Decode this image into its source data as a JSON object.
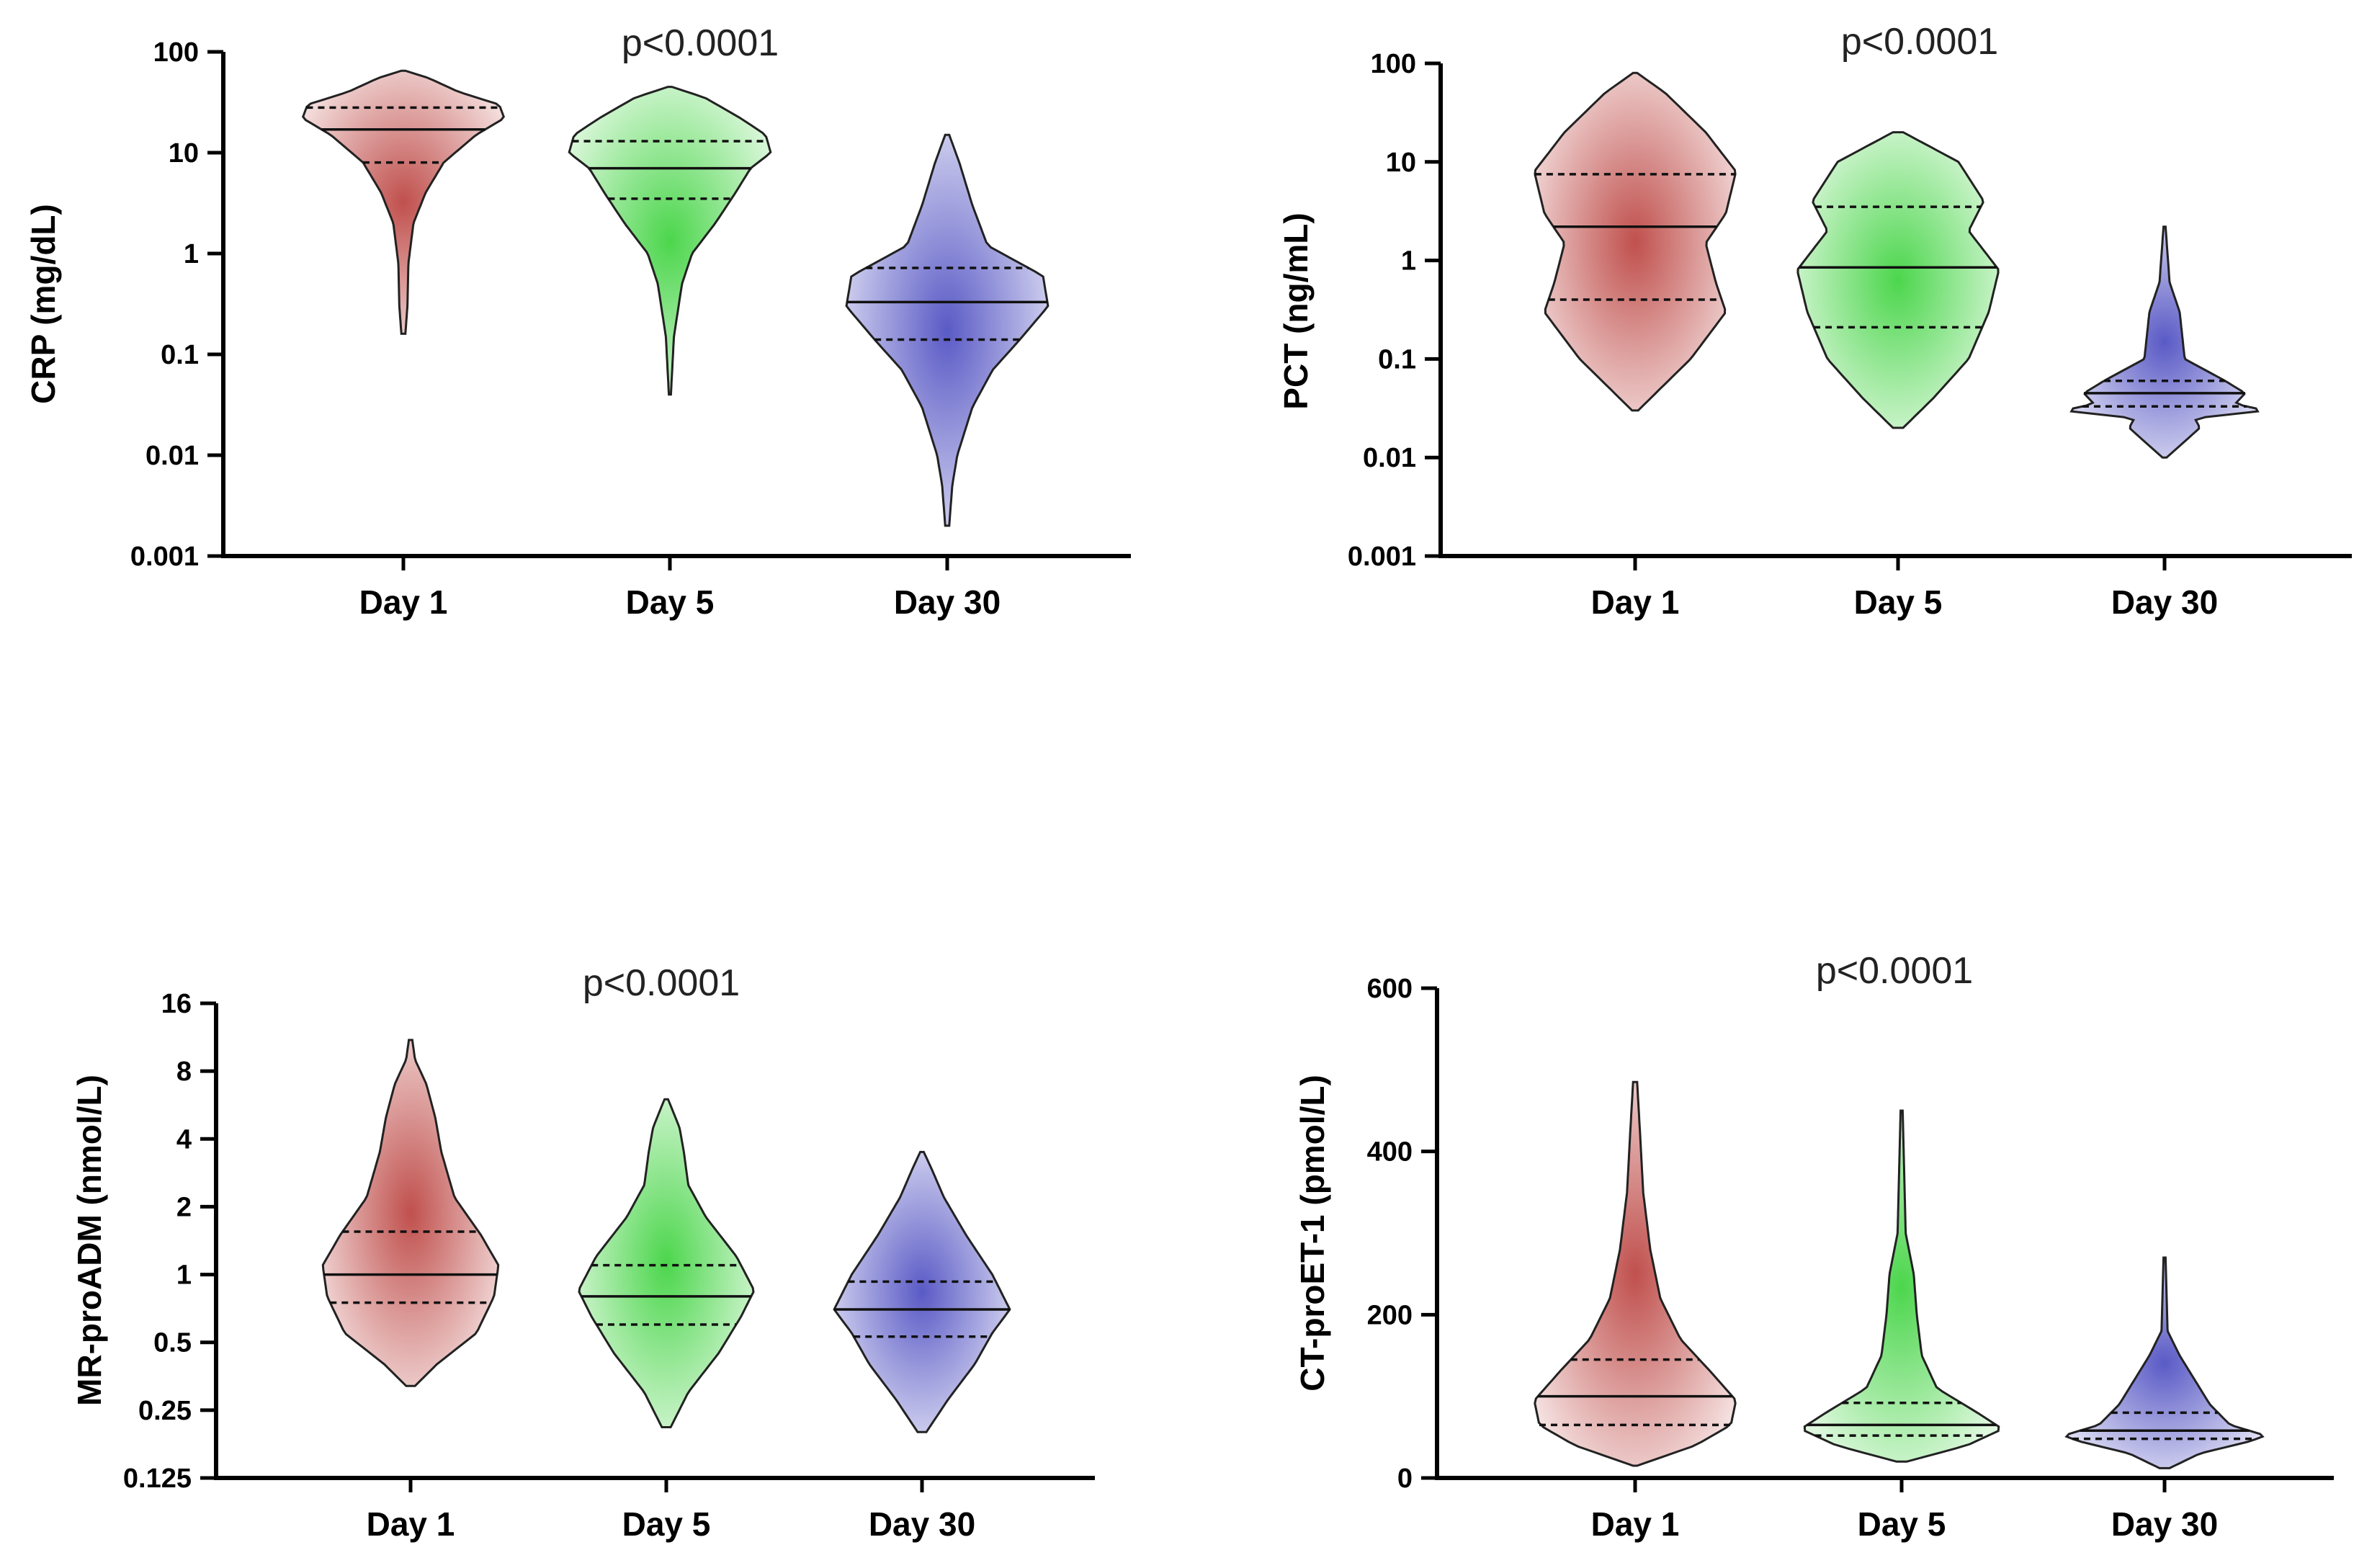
{
  "chart_data": [
    {
      "type": "violin",
      "scale": "log",
      "ylabel": "CRP (mg/dL)",
      "annotation": "p<0.0001",
      "yticks": [
        0.001,
        0.01,
        0.1,
        1,
        10,
        100
      ],
      "ytick_labels": [
        "0.001",
        "0.01",
        "0.1",
        "1",
        "10",
        "100"
      ],
      "ylim": [
        0.001,
        100
      ],
      "categories": [
        "Day 1",
        "Day 5",
        "Day 30"
      ],
      "series": [
        {
          "name": "Day 1",
          "color": "#c0504d",
          "min": 0.16,
          "max": 65,
          "q1": 8,
          "median": 17,
          "q3": 28,
          "profile": [
            [
              0.16,
              0.02
            ],
            [
              0.3,
              0.04
            ],
            [
              0.8,
              0.05
            ],
            [
              2,
              0.1
            ],
            [
              4,
              0.22
            ],
            [
              8,
              0.4
            ],
            [
              15,
              0.72
            ],
            [
              22,
              1.0
            ],
            [
              30,
              0.95
            ],
            [
              40,
              0.55
            ],
            [
              55,
              0.25
            ],
            [
              65,
              0.02
            ]
          ]
        },
        {
          "name": "Day 5",
          "color": "#4cd64c",
          "min": 0.04,
          "max": 45,
          "q1": 3.5,
          "median": 7,
          "q3": 13,
          "profile": [
            [
              0.04,
              0.01
            ],
            [
              0.15,
              0.04
            ],
            [
              0.5,
              0.12
            ],
            [
              1,
              0.22
            ],
            [
              2,
              0.45
            ],
            [
              4,
              0.65
            ],
            [
              7,
              0.8
            ],
            [
              10,
              1.0
            ],
            [
              15,
              0.95
            ],
            [
              22,
              0.7
            ],
            [
              35,
              0.35
            ],
            [
              45,
              0.02
            ]
          ]
        },
        {
          "name": "Day 30",
          "color": "#5a5ac6",
          "min": 0.002,
          "max": 15,
          "q1": 0.14,
          "median": 0.33,
          "q3": 0.72,
          "profile": [
            [
              0.002,
              0.02
            ],
            [
              0.005,
              0.05
            ],
            [
              0.01,
              0.1
            ],
            [
              0.03,
              0.25
            ],
            [
              0.07,
              0.45
            ],
            [
              0.14,
              0.72
            ],
            [
              0.3,
              1.0
            ],
            [
              0.6,
              0.95
            ],
            [
              1.2,
              0.4
            ],
            [
              3,
              0.25
            ],
            [
              8,
              0.12
            ],
            [
              15,
              0.02
            ]
          ]
        }
      ]
    },
    {
      "type": "violin",
      "scale": "log",
      "ylabel": "PCT (ng/mL)",
      "annotation": "p<0.0001",
      "yticks": [
        0.001,
        0.01,
        0.1,
        1,
        10,
        100
      ],
      "ytick_labels": [
        "0.001",
        "0.01",
        "0.1",
        "1",
        "10",
        "100"
      ],
      "ylim": [
        0.001,
        100
      ],
      "categories": [
        "Day 1",
        "Day 5",
        "Day 30"
      ],
      "series": [
        {
          "name": "Day 1",
          "color": "#c0504d",
          "min": 0.03,
          "max": 80,
          "q1": 0.4,
          "median": 2.2,
          "q3": 7.5,
          "profile": [
            [
              0.03,
              0.03
            ],
            [
              0.05,
              0.25
            ],
            [
              0.1,
              0.55
            ],
            [
              0.3,
              0.9
            ],
            [
              0.6,
              0.8
            ],
            [
              1.5,
              0.7
            ],
            [
              3,
              0.9
            ],
            [
              8,
              1.0
            ],
            [
              20,
              0.7
            ],
            [
              50,
              0.3
            ],
            [
              80,
              0.02
            ]
          ]
        },
        {
          "name": "Day 5",
          "color": "#4cd64c",
          "min": 0.02,
          "max": 20,
          "q1": 0.21,
          "median": 0.85,
          "q3": 3.5,
          "profile": [
            [
              0.02,
              0.05
            ],
            [
              0.04,
              0.35
            ],
            [
              0.1,
              0.7
            ],
            [
              0.3,
              0.9
            ],
            [
              0.8,
              1.0
            ],
            [
              2,
              0.7
            ],
            [
              4,
              0.85
            ],
            [
              10,
              0.6
            ],
            [
              20,
              0.05
            ]
          ]
        },
        {
          "name": "Day 30",
          "color": "#5a5ac6",
          "min": 0.01,
          "max": 2.2,
          "q1": 0.033,
          "median": 0.045,
          "q3": 0.06,
          "profile": [
            [
              0.01,
              0.02
            ],
            [
              0.02,
              0.35
            ],
            [
              0.025,
              0.3
            ],
            [
              0.03,
              1.0
            ],
            [
              0.035,
              0.7
            ],
            [
              0.045,
              0.8
            ],
            [
              0.06,
              0.6
            ],
            [
              0.1,
              0.2
            ],
            [
              0.3,
              0.15
            ],
            [
              0.6,
              0.05
            ],
            [
              2.2,
              0.01
            ]
          ]
        }
      ]
    },
    {
      "type": "violin",
      "scale": "log",
      "ylabel": "MR-proADM (nmol/L)",
      "annotation": "p<0.0001",
      "yticks": [
        0.125,
        0.25,
        0.5,
        1,
        2,
        4,
        8,
        16
      ],
      "ytick_labels": [
        "0.125",
        "0.25",
        "0.5",
        "1",
        "2",
        "4",
        "8",
        "16"
      ],
      "ylim": [
        0.125,
        16
      ],
      "categories": [
        "Day 1",
        "Day 5",
        "Day 30"
      ],
      "series": [
        {
          "name": "Day 1",
          "color": "#c0504d",
          "min": 0.32,
          "max": 11,
          "q1": 0.75,
          "median": 1.0,
          "q3": 1.55,
          "profile": [
            [
              0.32,
              0.05
            ],
            [
              0.4,
              0.3
            ],
            [
              0.55,
              0.75
            ],
            [
              0.8,
              0.95
            ],
            [
              1.1,
              1.0
            ],
            [
              1.5,
              0.8
            ],
            [
              2.2,
              0.5
            ],
            [
              3.5,
              0.35
            ],
            [
              5,
              0.28
            ],
            [
              7,
              0.18
            ],
            [
              9,
              0.05
            ],
            [
              11,
              0.02
            ]
          ]
        },
        {
          "name": "Day 5",
          "color": "#4cd64c",
          "min": 0.21,
          "max": 6,
          "q1": 0.6,
          "median": 0.8,
          "q3": 1.1,
          "profile": [
            [
              0.21,
              0.05
            ],
            [
              0.3,
              0.25
            ],
            [
              0.45,
              0.6
            ],
            [
              0.65,
              0.85
            ],
            [
              0.85,
              1.0
            ],
            [
              1.2,
              0.8
            ],
            [
              1.8,
              0.45
            ],
            [
              2.5,
              0.25
            ],
            [
              3.5,
              0.2
            ],
            [
              4.5,
              0.15
            ],
            [
              6,
              0.02
            ]
          ]
        },
        {
          "name": "Day 30",
          "color": "#5a5ac6",
          "min": 0.2,
          "max": 3.5,
          "q1": 0.53,
          "median": 0.7,
          "q3": 0.93,
          "profile": [
            [
              0.2,
              0.05
            ],
            [
              0.28,
              0.3
            ],
            [
              0.4,
              0.6
            ],
            [
              0.55,
              0.8
            ],
            [
              0.7,
              1.0
            ],
            [
              1.0,
              0.8
            ],
            [
              1.5,
              0.5
            ],
            [
              2.2,
              0.25
            ],
            [
              3,
              0.1
            ],
            [
              3.5,
              0.02
            ]
          ]
        }
      ]
    },
    {
      "type": "violin",
      "scale": "linear",
      "ylabel": "CT-proET-1 (pmol/L)",
      "annotation": "p<0.0001",
      "yticks": [
        0,
        200,
        400,
        600
      ],
      "ytick_labels": [
        "0",
        "200",
        "400",
        "600"
      ],
      "ylim": [
        0,
        600
      ],
      "categories": [
        "Day 1",
        "Day 5",
        "Day 30"
      ],
      "series": [
        {
          "name": "Day 1",
          "color": "#c0504d",
          "min": 15,
          "max": 485,
          "q1": 65,
          "median": 100,
          "q3": 145,
          "profile": [
            [
              15,
              0.02
            ],
            [
              40,
              0.6
            ],
            [
              65,
              0.95
            ],
            [
              95,
              1.0
            ],
            [
              130,
              0.75
            ],
            [
              170,
              0.45
            ],
            [
              220,
              0.25
            ],
            [
              280,
              0.15
            ],
            [
              350,
              0.08
            ],
            [
              420,
              0.05
            ],
            [
              485,
              0.02
            ]
          ]
        },
        {
          "name": "Day 5",
          "color": "#4cd64c",
          "min": 20,
          "max": 450,
          "q1": 52,
          "median": 65,
          "q3": 92,
          "profile": [
            [
              20,
              0.05
            ],
            [
              40,
              0.65
            ],
            [
              60,
              1.0
            ],
            [
              80,
              0.75
            ],
            [
              110,
              0.35
            ],
            [
              150,
              0.2
            ],
            [
              200,
              0.15
            ],
            [
              250,
              0.12
            ],
            [
              300,
              0.04
            ],
            [
              450,
              0.01
            ]
          ]
        },
        {
          "name": "Day 30",
          "color": "#5a5ac6",
          "min": 12,
          "max": 270,
          "q1": 48,
          "median": 58,
          "q3": 80,
          "profile": [
            [
              12,
              0.05
            ],
            [
              30,
              0.35
            ],
            [
              45,
              0.85
            ],
            [
              52,
              1.0
            ],
            [
              65,
              0.65
            ],
            [
              90,
              0.45
            ],
            [
              120,
              0.3
            ],
            [
              150,
              0.15
            ],
            [
              180,
              0.03
            ],
            [
              270,
              0.01
            ]
          ]
        }
      ]
    }
  ]
}
